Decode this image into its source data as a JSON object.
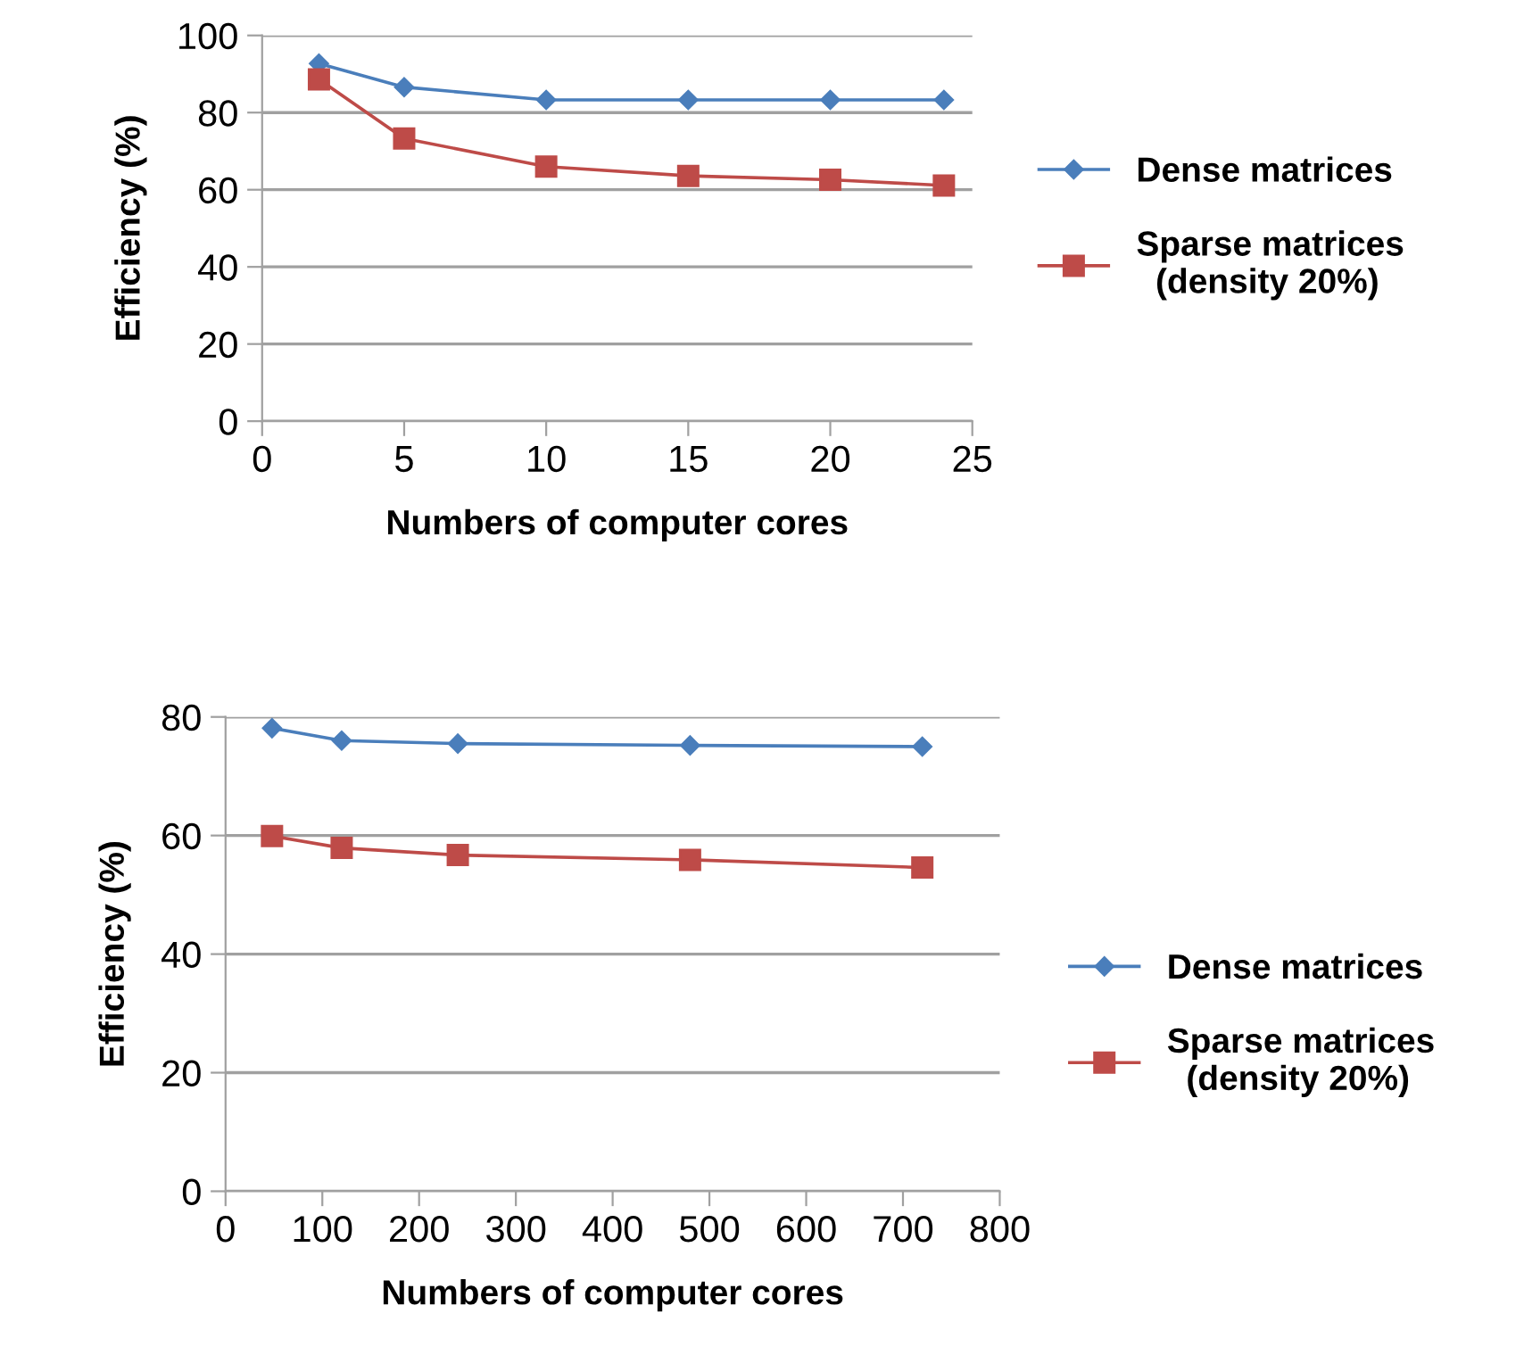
{
  "chart_data": [
    {
      "type": "line",
      "xlabel": "Numbers of computer cores",
      "ylabel": "Efficiency (%)",
      "xlim": [
        0,
        25
      ],
      "xticks": [
        0,
        5,
        10,
        15,
        20,
        25
      ],
      "ylim": [
        0,
        100
      ],
      "yticks": [
        0,
        20,
        40,
        60,
        80,
        100
      ],
      "grid": "y",
      "legend": "right",
      "line_style": "solid",
      "x": [
        2,
        5,
        10,
        15,
        20,
        24
      ],
      "series": [
        {
          "name": "Dense matrices",
          "color": "#4a7ebb",
          "marker": "diamond",
          "values": [
            92.7,
            86.6,
            83.3,
            83.3,
            83.3,
            83.3
          ]
        },
        {
          "name": "Sparse matrices\n  (density 20%)",
          "color": "#be4b48",
          "marker": "square",
          "values": [
            88.6,
            73.3,
            66,
            63.6,
            62.6,
            61.1
          ]
        }
      ]
    },
    {
      "type": "line",
      "xlabel": "Numbers of computer cores",
      "ylabel": "Efficiency (%)",
      "xlim": [
        0,
        800
      ],
      "xticks": [
        0,
        100,
        200,
        300,
        400,
        500,
        600,
        700,
        800
      ],
      "ylim": [
        0,
        80
      ],
      "yticks": [
        0,
        20,
        40,
        60,
        80
      ],
      "grid": "y",
      "legend": "right",
      "line_style": "solid",
      "x": [
        48,
        120,
        240,
        480,
        720
      ],
      "series": [
        {
          "name": "Dense matrices",
          "color": "#4a7ebb",
          "marker": "diamond",
          "values": [
            78.1,
            76.0,
            75.5,
            75.2,
            75.0
          ]
        },
        {
          "name": "Sparse matrices\n  (density 20%)",
          "color": "#be4b48",
          "marker": "square",
          "values": [
            59.9,
            57.9,
            56.7,
            55.9,
            54.6
          ]
        }
      ]
    }
  ]
}
